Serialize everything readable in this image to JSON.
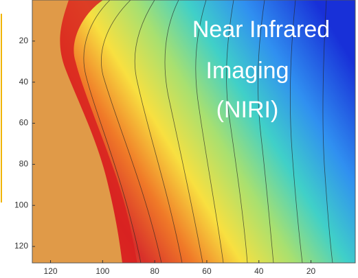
{
  "chart_data": {
    "type": "contour",
    "overlay_text": [
      "Near Infrared",
      "Imaging",
      "(NIRI)"
    ],
    "xlim": [
      3,
      127
    ],
    "x_reversed": true,
    "xticks": [
      120,
      100,
      80,
      60,
      40,
      20
    ],
    "ylim": [
      0,
      128
    ],
    "y_reversed": true,
    "yticks": [
      20,
      40,
      60,
      80,
      100,
      120
    ]
  }
}
